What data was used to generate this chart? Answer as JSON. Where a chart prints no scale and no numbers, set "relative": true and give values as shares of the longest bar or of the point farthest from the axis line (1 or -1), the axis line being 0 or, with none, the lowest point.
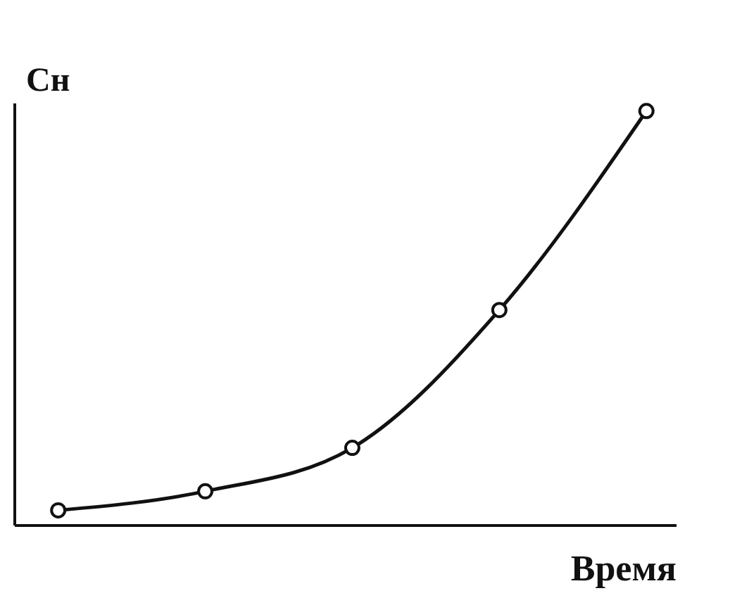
{
  "chart_data": {
    "type": "line",
    "relative": true,
    "xlabel": "Время",
    "ylabel": "Сн",
    "categories": [
      null,
      null,
      null,
      null,
      null
    ],
    "series": [
      {
        "color": "#111111",
        "values": [
          0.035,
          0.081,
          0.186,
          0.519,
          1.0
        ]
      }
    ],
    "marker": "circle",
    "line_style": "solid",
    "grid": false
  }
}
